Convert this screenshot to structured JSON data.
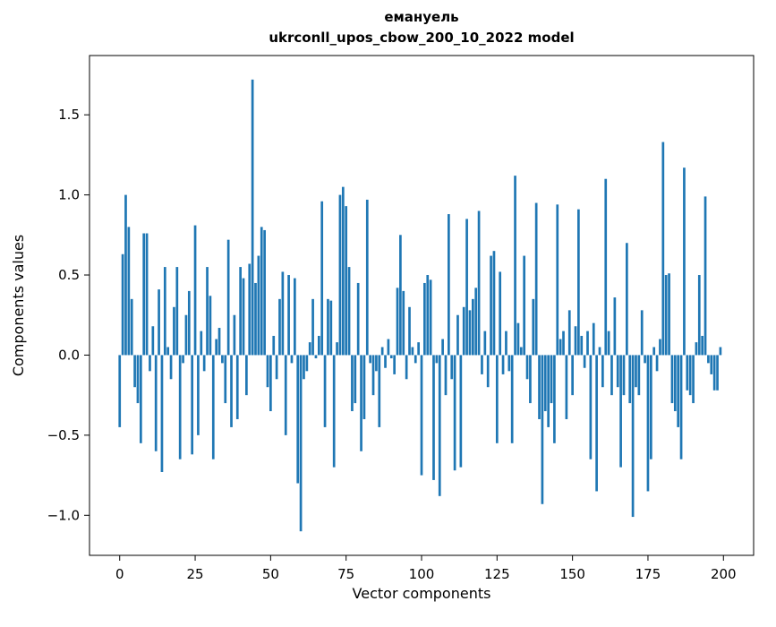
{
  "figure": {
    "title_line1": "емануель",
    "title_line2": "ukrconll_upos_cbow_200_10_2022 model",
    "xlabel": "Vector components",
    "ylabel": "Components values"
  },
  "chart_data": {
    "type": "bar",
    "title": "емануель\nukrconll_upos_cbow_200_10_2022 model",
    "xlabel": "Vector components",
    "ylabel": "Components values",
    "bar_color": "#1f77b4",
    "grid": false,
    "legend": false,
    "xlim": [
      -10,
      210
    ],
    "ylim": [
      -1.25,
      1.87
    ],
    "x_ticks": [
      0,
      25,
      50,
      75,
      100,
      125,
      150,
      175,
      200
    ],
    "y_ticks": [
      -1.0,
      -0.5,
      0.0,
      0.5,
      1.0,
      1.5
    ],
    "x_start": 0,
    "values": [
      -0.45,
      0.63,
      1.0,
      0.8,
      0.35,
      -0.2,
      -0.3,
      -0.55,
      0.76,
      0.76,
      -0.1,
      0.18,
      -0.6,
      0.41,
      -0.73,
      0.55,
      0.05,
      -0.15,
      0.3,
      0.55,
      -0.65,
      -0.05,
      0.25,
      0.4,
      -0.62,
      0.81,
      -0.5,
      0.15,
      -0.1,
      0.55,
      0.37,
      -0.65,
      0.1,
      0.17,
      -0.05,
      -0.3,
      0.72,
      -0.45,
      0.25,
      -0.4,
      0.55,
      0.48,
      -0.25,
      0.57,
      1.72,
      0.45,
      0.62,
      0.8,
      0.78,
      -0.2,
      -0.35,
      0.12,
      -0.15,
      0.35,
      0.52,
      -0.5,
      0.5,
      -0.05,
      0.48,
      -0.8,
      -1.1,
      -0.15,
      -0.1,
      0.08,
      0.35,
      -0.02,
      0.12,
      0.96,
      -0.45,
      0.35,
      0.34,
      -0.7,
      0.08,
      1.0,
      1.05,
      0.93,
      0.55,
      -0.35,
      -0.3,
      0.45,
      -0.6,
      -0.4,
      0.97,
      -0.05,
      -0.25,
      -0.1,
      -0.45,
      0.05,
      -0.08,
      0.1,
      -0.02,
      -0.12,
      0.42,
      0.75,
      0.4,
      -0.15,
      0.3,
      0.05,
      -0.05,
      0.08,
      -0.75,
      0.45,
      0.5,
      0.47,
      -0.78,
      -0.05,
      -0.88,
      0.1,
      -0.25,
      0.88,
      -0.15,
      -0.72,
      0.25,
      -0.7,
      0.3,
      0.85,
      0.28,
      0.35,
      0.42,
      0.9,
      -0.12,
      0.15,
      -0.2,
      0.62,
      0.65,
      -0.55,
      0.52,
      -0.12,
      0.15,
      -0.1,
      -0.55,
      1.12,
      0.2,
      0.05,
      0.62,
      -0.15,
      -0.3,
      0.35,
      0.95,
      -0.4,
      -0.93,
      -0.35,
      -0.45,
      -0.3,
      -0.55,
      0.94,
      0.1,
      0.15,
      -0.4,
      0.28,
      -0.25,
      0.18,
      0.91,
      0.12,
      -0.08,
      0.15,
      -0.65,
      0.2,
      -0.85,
      0.05,
      -0.2,
      1.1,
      0.15,
      -0.25,
      0.36,
      -0.2,
      -0.7,
      -0.25,
      0.7,
      -0.3,
      -1.01,
      -0.2,
      -0.25,
      0.28,
      -0.05,
      -0.85,
      -0.65,
      0.05,
      -0.1,
      0.1,
      1.33,
      0.5,
      0.51,
      -0.3,
      -0.35,
      -0.45,
      -0.65,
      1.17,
      -0.22,
      -0.25,
      -0.3,
      0.08,
      0.5,
      0.12,
      0.99,
      -0.05,
      -0.12,
      -0.22,
      -0.22,
      0.05
    ]
  }
}
